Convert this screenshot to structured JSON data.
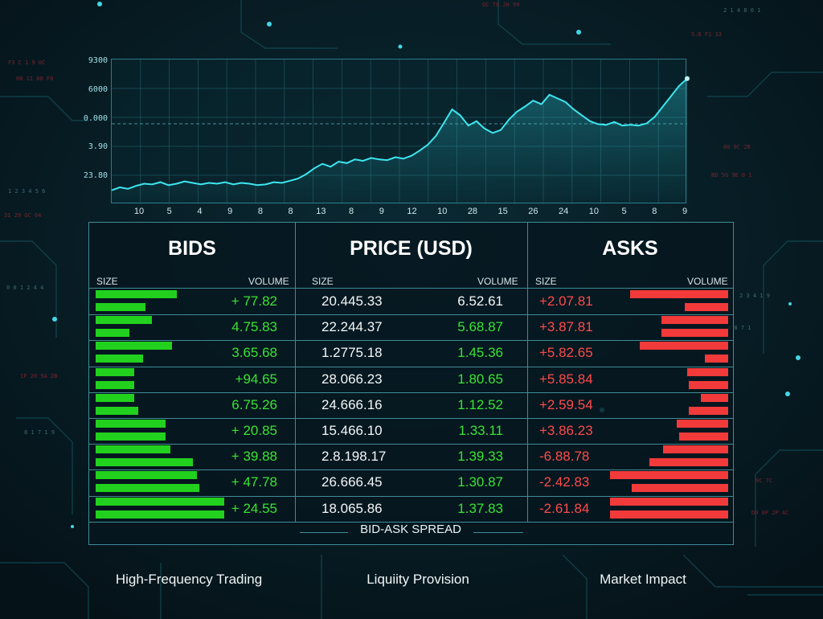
{
  "theme": {
    "background": "#071a22",
    "grid": "#2f7a86",
    "line": "#3ee6ef",
    "bid_color": "#22d11d",
    "ask_color": "#f23a3a"
  },
  "chart": {
    "y_labels": [
      "9300",
      "6000",
      "0.000",
      "3.90",
      "23.80"
    ],
    "x_labels": [
      "10",
      "5",
      "4",
      "9",
      "8",
      "8",
      "13",
      "8",
      "9",
      "12",
      "10",
      "28",
      "15",
      "26",
      "24",
      "10",
      "5",
      "8",
      "9"
    ]
  },
  "chart_data": {
    "type": "area",
    "values": [
      8,
      12,
      10,
      14,
      17,
      16,
      19,
      15,
      17,
      20,
      18,
      16,
      18,
      17,
      19,
      16,
      18,
      17,
      15,
      16,
      19,
      18,
      21,
      24,
      30,
      38,
      44,
      40,
      47,
      45,
      50,
      48,
      52,
      50,
      49,
      53,
      51,
      55,
      62,
      70,
      82,
      100,
      118,
      110,
      96,
      102,
      92,
      86,
      90,
      104,
      115,
      122,
      130,
      125,
      138,
      133,
      128,
      118,
      110,
      102,
      98,
      97,
      101,
      96,
      97,
      96,
      99,
      108,
      122,
      136,
      150,
      160
    ]
  },
  "book": {
    "bids_title": "BIDS",
    "price_title": "PRICE (USD)",
    "asks_title": "ASKS",
    "size_label": "SIZE",
    "volume_label": "VOLUME",
    "spread_label": "BID-ASK SPREAD",
    "rows": [
      {
        "bid_vol": "+ 77.82",
        "bid_bar": 0.36,
        "bid_bar2": 0.22,
        "price": "20.445.33",
        "price_vol": "6.52.61",
        "price_vol_color": "#f4f7f8",
        "ask_vol": "+2.07.81",
        "ask_bar": 0.5,
        "ask_bar2": 0.22
      },
      {
        "bid_vol": "4.75.83",
        "bid_bar": 0.25,
        "bid_bar2": 0.15,
        "price": "22.244.37",
        "price_vol": "5.68.87",
        "price_vol_color": "#39e432",
        "ask_vol": "+3.87.81",
        "ask_bar": 0.34,
        "ask_bar2": 0.34
      },
      {
        "bid_vol": "3.65.68",
        "bid_bar": 0.34,
        "bid_bar2": 0.21,
        "price": "1.2775.18",
        "price_vol": "1.45.36",
        "price_vol_color": "#39e432",
        "ask_vol": "+5.82.65",
        "ask_bar": 0.45,
        "ask_bar2": 0.12
      },
      {
        "bid_vol": "+94.65",
        "bid_bar": 0.17,
        "bid_bar2": 0.17,
        "price": "28.066.23",
        "price_vol": "1.80.65",
        "price_vol_color": "#39e432",
        "ask_vol": "+5.85.84",
        "ask_bar": 0.21,
        "ask_bar2": 0.2
      },
      {
        "bid_vol": "6.75.26",
        "bid_bar": 0.17,
        "bid_bar2": 0.19,
        "price": "24.666.16",
        "price_vol": "1.12.52",
        "price_vol_color": "#39e432",
        "ask_vol": "+2.59.54",
        "ask_bar": 0.14,
        "ask_bar2": 0.2
      },
      {
        "bid_vol": "+ 20.85",
        "bid_bar": 0.31,
        "bid_bar2": 0.31,
        "price": "15.466.10",
        "price_vol": "1.33.11",
        "price_vol_color": "#39e432",
        "ask_vol": "+3.86.23",
        "ask_bar": 0.26,
        "ask_bar2": 0.25
      },
      {
        "bid_vol": "+ 39.88",
        "bid_bar": 0.33,
        "bid_bar2": 0.43,
        "price": "2.8.198.17",
        "price_vol": "1.39.33",
        "price_vol_color": "#39e432",
        "ask_vol": "-6.88.78",
        "ask_bar": 0.33,
        "ask_bar2": 0.4
      },
      {
        "bid_vol": "+ 47.78",
        "bid_bar": 0.45,
        "bid_bar2": 0.46,
        "price": "26.666.45",
        "price_vol": "1.30.87",
        "price_vol_color": "#39e432",
        "ask_vol": "-2.42.83",
        "ask_bar": 0.6,
        "ask_bar2": 0.49
      },
      {
        "bid_vol": "+ 24.55",
        "bid_bar": 0.57,
        "bid_bar2": 0.57,
        "price": "18.065.86",
        "price_vol": "1.37.83",
        "price_vol_color": "#39e432",
        "ask_vol": "-2.61.84",
        "ask_bar": 0.6,
        "ask_bar2": 0.6
      }
    ]
  },
  "footer": {
    "left": "High-Frequency Trading",
    "center": "Liquiity Provision",
    "right": "Market Impact"
  }
}
